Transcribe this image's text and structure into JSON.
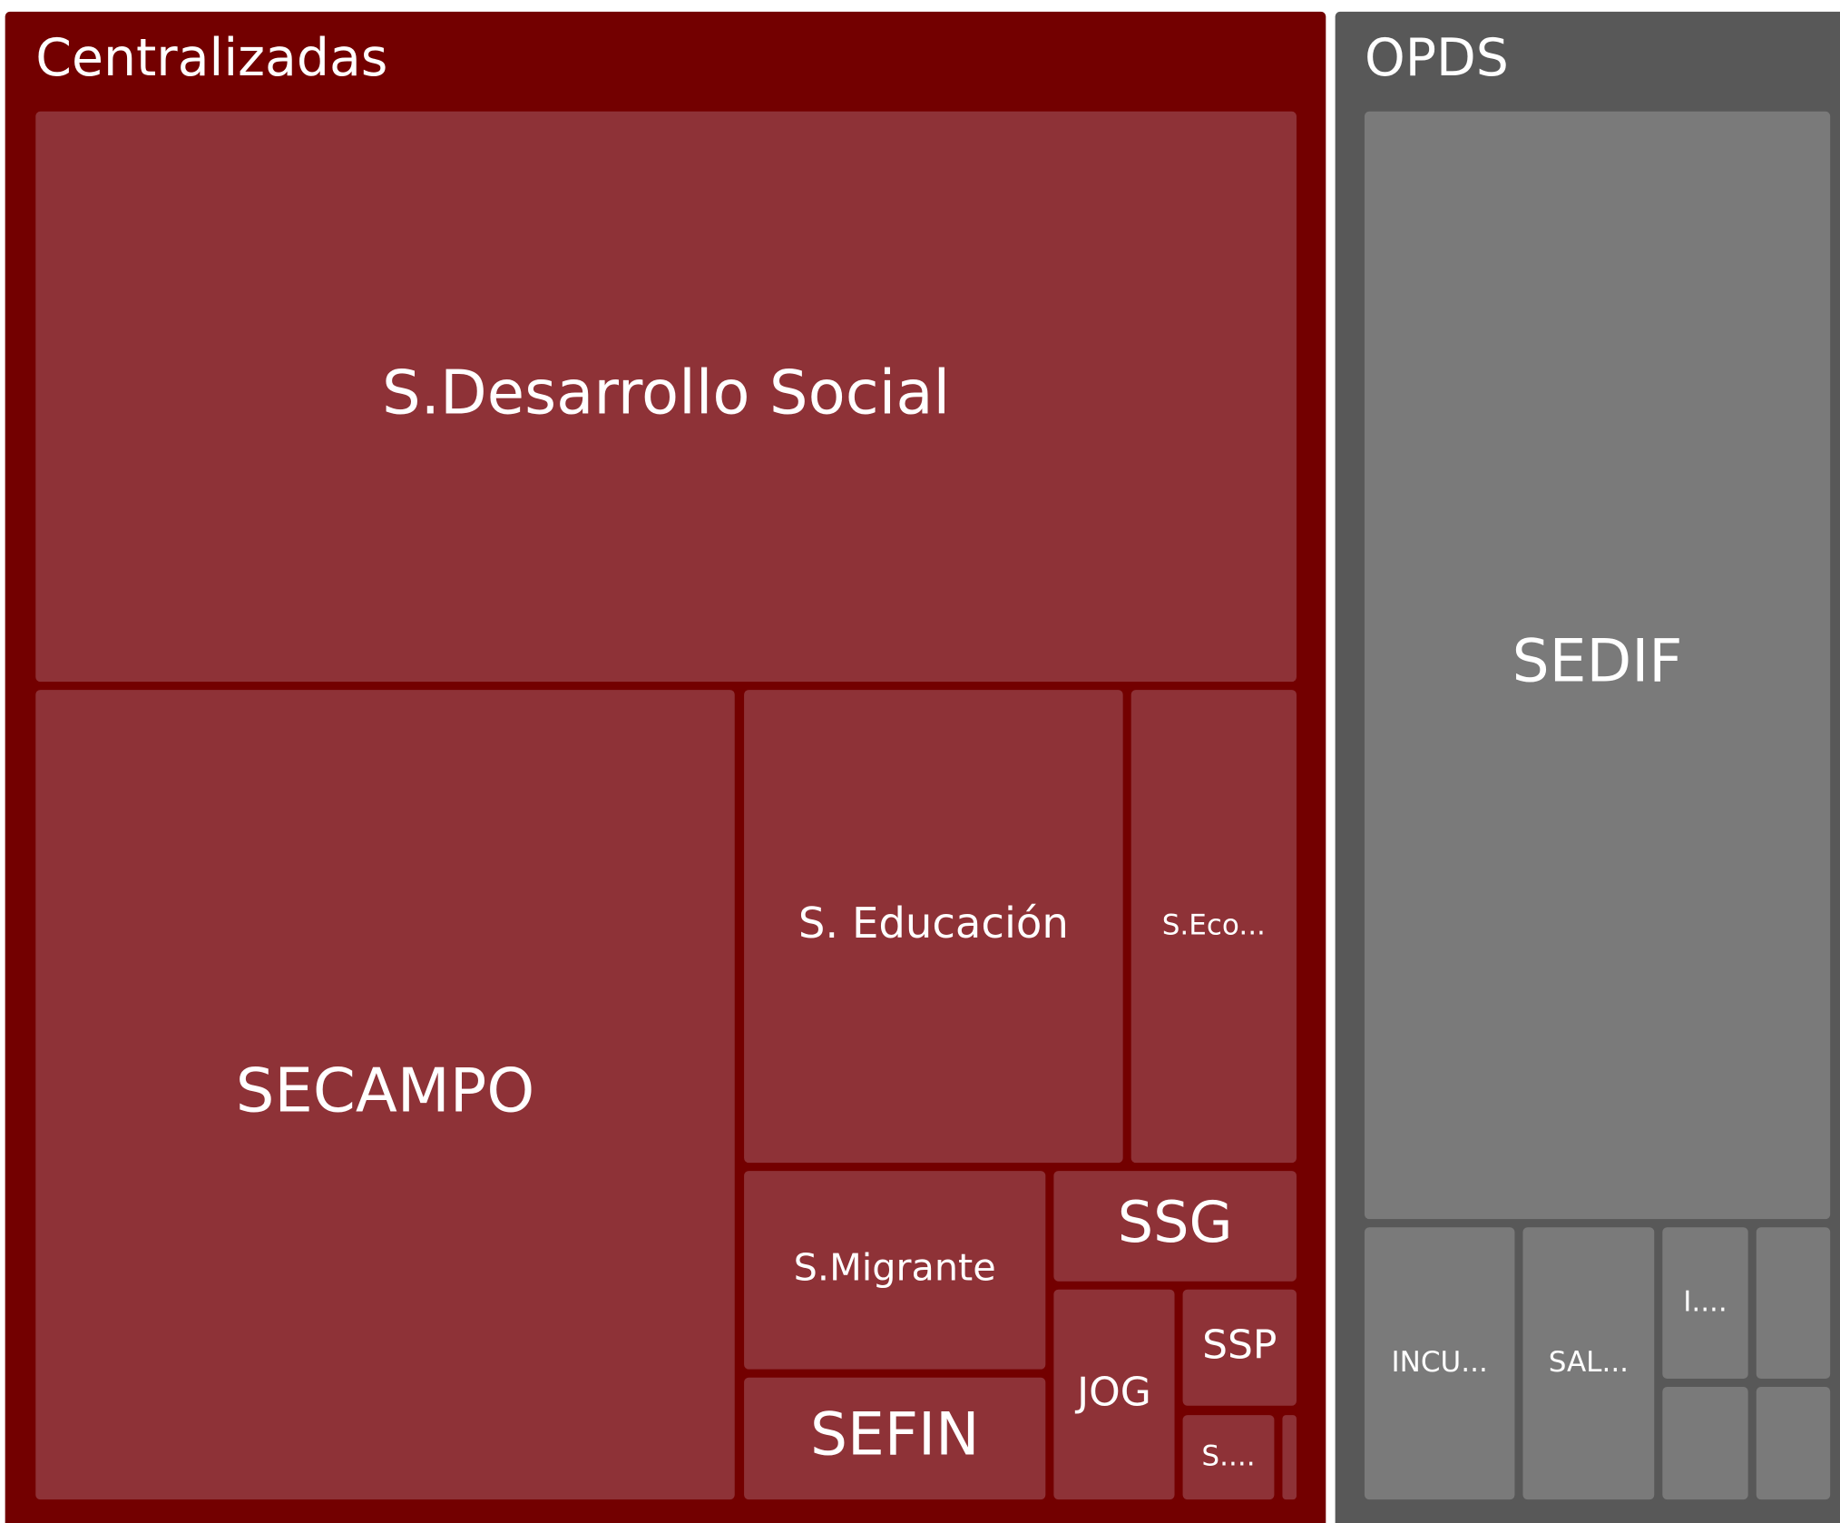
{
  "groups": [
    {
      "label": "Centralizadas",
      "tiles": [
        "S.Desarrollo Social",
        "SECAMPO",
        "S. Educación",
        "S.Eco...",
        "S.Migrante",
        "SEFIN",
        "SSG",
        "JOG",
        "SSP",
        "S...."
      ]
    },
    {
      "label": "OPDS",
      "tiles": [
        "SEDIF",
        "INCU...",
        "SAL...",
        "I...."
      ]
    }
  ]
}
